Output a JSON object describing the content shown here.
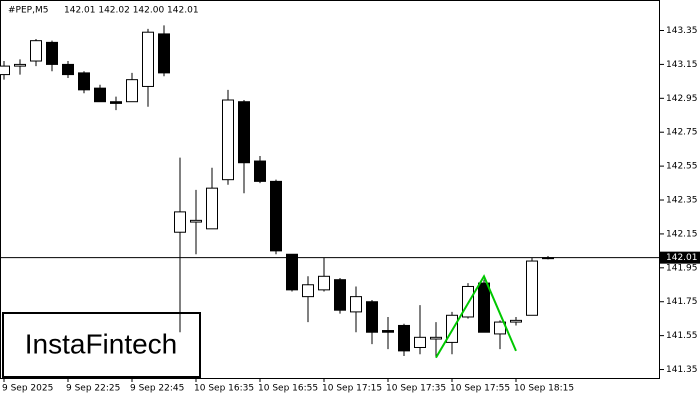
{
  "chart_data": {
    "type": "candlestick",
    "title": "#PEP,M5",
    "ohlc_text": "142.01 142.02 142.00 142.01",
    "watermark": "InstaFintech",
    "categories": [
      "9 Sep 2025",
      null,
      null,
      null,
      "9 Sep 22:25",
      null,
      null,
      null,
      "9 Sep 22:45",
      null,
      null,
      null,
      "10 Sep 16:35",
      null,
      null,
      null,
      "10 Sep 16:55",
      null,
      null,
      null,
      "10 Sep 17:15",
      null,
      null,
      null,
      "10 Sep 17:35",
      null,
      null,
      null,
      "10 Sep 17:55",
      null,
      null,
      null,
      "10 Sep 18:15",
      null,
      null
    ],
    "open": [
      143.09,
      143.14,
      143.17,
      143.28,
      143.15,
      143.1,
      143.01,
      142.93,
      142.93,
      143.02,
      143.33,
      142.16,
      142.22,
      142.18,
      142.47,
      142.93,
      142.58,
      142.46,
      142.03,
      141.78,
      141.82,
      141.88,
      141.69,
      141.75,
      141.58,
      141.61,
      141.48,
      141.53,
      141.51,
      141.66,
      141.86,
      141.56,
      141.63,
      141.67,
      142.01
    ],
    "high": [
      143.17,
      143.18,
      143.3,
      143.29,
      143.17,
      143.11,
      143.03,
      142.96,
      143.1,
      143.36,
      143.38,
      142.6,
      142.41,
      142.54,
      143.0,
      142.94,
      142.61,
      142.47,
      142.03,
      141.9,
      142.01,
      141.89,
      141.84,
      141.76,
      141.66,
      141.62,
      141.73,
      141.63,
      141.69,
      141.86,
      141.88,
      141.64,
      141.66,
      142.01,
      142.02
    ],
    "low": [
      143.06,
      143.09,
      143.14,
      143.11,
      143.07,
      142.98,
      142.93,
      142.88,
      142.93,
      142.9,
      143.08,
      141.57,
      142.03,
      142.18,
      142.44,
      142.39,
      142.45,
      142.03,
      141.81,
      141.63,
      141.81,
      141.68,
      141.57,
      141.5,
      141.47,
      141.43,
      141.44,
      141.42,
      141.44,
      141.65,
      141.57,
      141.47,
      141.61,
      141.67,
      142.0
    ],
    "close": [
      143.14,
      143.15,
      143.29,
      143.15,
      143.09,
      143.0,
      142.93,
      142.92,
      143.06,
      143.34,
      143.1,
      142.28,
      142.23,
      142.42,
      142.94,
      142.57,
      142.46,
      142.05,
      141.82,
      141.85,
      141.9,
      141.7,
      141.78,
      141.57,
      141.57,
      141.46,
      141.54,
      141.54,
      141.67,
      141.84,
      141.57,
      141.63,
      141.64,
      141.99,
      142.01
    ],
    "up_color": "#ffffff",
    "down_color": "#000000",
    "last_price": 142.01,
    "pattern": {
      "color": "#00c800",
      "points": [
        {
          "index": 27,
          "value": 141.42
        },
        {
          "index": 30,
          "value": 141.9
        },
        {
          "index": 32,
          "value": 141.46
        }
      ]
    },
    "ylim": [
      141.3,
      143.53
    ],
    "yticks": [
      141.35,
      141.55,
      141.75,
      141.95,
      142.15,
      142.35,
      142.55,
      142.75,
      142.95,
      143.15,
      143.35
    ]
  }
}
